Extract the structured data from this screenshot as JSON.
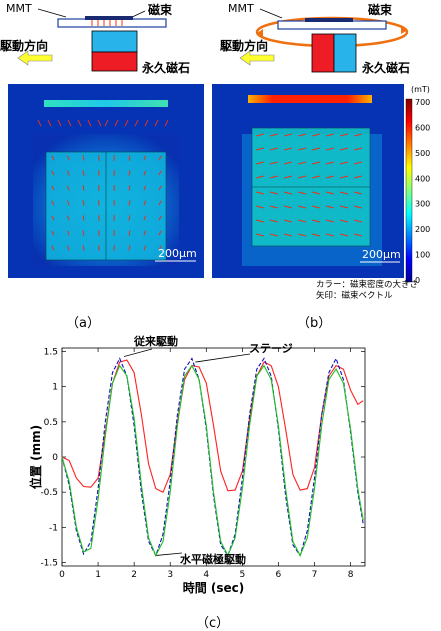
{
  "diagram_a": {
    "mmt_label": "MMT",
    "flux_label": "磁束",
    "magnet_label": "永久磁石",
    "drive_label": "駆動方向"
  },
  "diagram_b": {
    "mmt_label": "MMT",
    "flux_label": "磁束",
    "magnet_label": "永久磁石",
    "drive_label": "駆動方向"
  },
  "sim_a": {
    "scale_label": "200μm"
  },
  "sim_b": {
    "scale_label": "200μm"
  },
  "colorbar": {
    "unit": "(mT)",
    "ticks": [
      "700",
      "600",
      "500",
      "400",
      "300",
      "200",
      "100",
      "0"
    ],
    "colors": [
      "#00008f",
      "#0000ff",
      "#0080ff",
      "#00ffff",
      "#80ff80",
      "#ffff00",
      "#ff8000",
      "#ff0000",
      "#800000"
    ]
  },
  "notes": {
    "line1": "カラー：磁束密度の大きさ",
    "line2": "矢印：磁束ベクトル"
  },
  "panel_labels": {
    "a": "（a）",
    "b": "（b）",
    "c": "（c）"
  },
  "chart_data": {
    "type": "line",
    "title": "",
    "xlabel": "時間 (sec)",
    "ylabel": "位置 (mm)",
    "xlim": [
      0,
      8.4
    ],
    "ylim": [
      -1.55,
      1.55
    ],
    "xticks": [
      "0",
      "1",
      "2",
      "3",
      "4",
      "5",
      "6",
      "7",
      "8"
    ],
    "yticks": [
      "1.5",
      "1",
      "0.5",
      "0",
      "-0.5",
      "-1",
      "-1.5"
    ],
    "grid": false,
    "series": [
      {
        "name": "従来駆動",
        "color": "#ff2020",
        "x": [
          0,
          0.2,
          0.4,
          0.6,
          0.8,
          1.0,
          1.2,
          1.4,
          1.6,
          1.8,
          2.0,
          2.2,
          2.4,
          2.6,
          2.8,
          3.0,
          3.2,
          3.4,
          3.6,
          3.8,
          4.0,
          4.2,
          4.4,
          4.6,
          4.8,
          5.0,
          5.2,
          5.4,
          5.6,
          5.8,
          6.0,
          6.2,
          6.4,
          6.6,
          6.8,
          7.0,
          7.2,
          7.4,
          7.6,
          7.8,
          8.0,
          8.2,
          8.35
        ],
        "y": [
          0,
          -0.05,
          -0.3,
          -0.42,
          -0.43,
          -0.3,
          0.35,
          1.05,
          1.35,
          1.38,
          1.2,
          0.6,
          -0.1,
          -0.45,
          -0.5,
          -0.25,
          0.5,
          1.1,
          1.3,
          1.28,
          1.05,
          0.45,
          -0.2,
          -0.48,
          -0.47,
          -0.2,
          0.55,
          1.15,
          1.35,
          1.3,
          1.0,
          0.4,
          -0.25,
          -0.47,
          -0.45,
          -0.15,
          0.6,
          1.15,
          1.3,
          1.25,
          0.95,
          0.75,
          0.8
        ]
      },
      {
        "name": "ステージ",
        "color": "#1010c0",
        "x": [
          0,
          0.2,
          0.4,
          0.6,
          0.8,
          1.0,
          1.2,
          1.4,
          1.6,
          1.8,
          2.0,
          2.2,
          2.4,
          2.6,
          2.8,
          3.0,
          3.2,
          3.4,
          3.6,
          3.8,
          4.0,
          4.2,
          4.4,
          4.6,
          4.8,
          5.0,
          5.2,
          5.4,
          5.6,
          5.8,
          6.0,
          6.2,
          6.4,
          6.6,
          6.8,
          7.0,
          7.2,
          7.4,
          7.6,
          7.8,
          8.0,
          8.2,
          8.35
        ],
        "y": [
          0,
          -0.4,
          -1.05,
          -1.38,
          -1.2,
          -0.45,
          0.5,
          1.2,
          1.4,
          1.15,
          0.45,
          -0.5,
          -1.2,
          -1.4,
          -1.1,
          -0.35,
          0.6,
          1.25,
          1.4,
          1.1,
          0.4,
          -0.55,
          -1.25,
          -1.4,
          -1.1,
          -0.3,
          0.6,
          1.25,
          1.4,
          1.15,
          0.4,
          -0.55,
          -1.25,
          -1.4,
          -1.05,
          -0.3,
          0.6,
          1.2,
          1.4,
          1.1,
          0.35,
          -0.5,
          -0.95
        ]
      },
      {
        "name": "水平磁極駆動",
        "color": "#20c020",
        "x": [
          0,
          0.2,
          0.4,
          0.6,
          0.8,
          1.0,
          1.2,
          1.4,
          1.6,
          1.8,
          2.0,
          2.2,
          2.4,
          2.6,
          2.8,
          3.0,
          3.2,
          3.4,
          3.6,
          3.8,
          4.0,
          4.2,
          4.4,
          4.6,
          4.8,
          5.0,
          5.2,
          5.4,
          5.6,
          5.8,
          6.0,
          6.2,
          6.4,
          6.6,
          6.8,
          7.0,
          7.2,
          7.4,
          7.6,
          7.8,
          8.0,
          8.2,
          8.35
        ],
        "y": [
          0,
          -0.35,
          -1.0,
          -1.35,
          -1.3,
          -0.6,
          0.3,
          1.05,
          1.3,
          1.15,
          0.55,
          -0.4,
          -1.15,
          -1.4,
          -1.2,
          -0.5,
          0.45,
          1.15,
          1.3,
          1.1,
          0.45,
          -0.5,
          -1.2,
          -1.4,
          -1.15,
          -0.45,
          0.45,
          1.15,
          1.3,
          1.1,
          0.45,
          -0.45,
          -1.2,
          -1.4,
          -1.15,
          -0.45,
          0.45,
          1.1,
          1.25,
          1.05,
          0.4,
          -0.45,
          -0.9
        ]
      }
    ],
    "annotations": [
      {
        "text": "従来駆動",
        "series": 0
      },
      {
        "text": "ステージ",
        "series": 1
      },
      {
        "text": "水平磁極駆動",
        "series": 2
      }
    ]
  }
}
